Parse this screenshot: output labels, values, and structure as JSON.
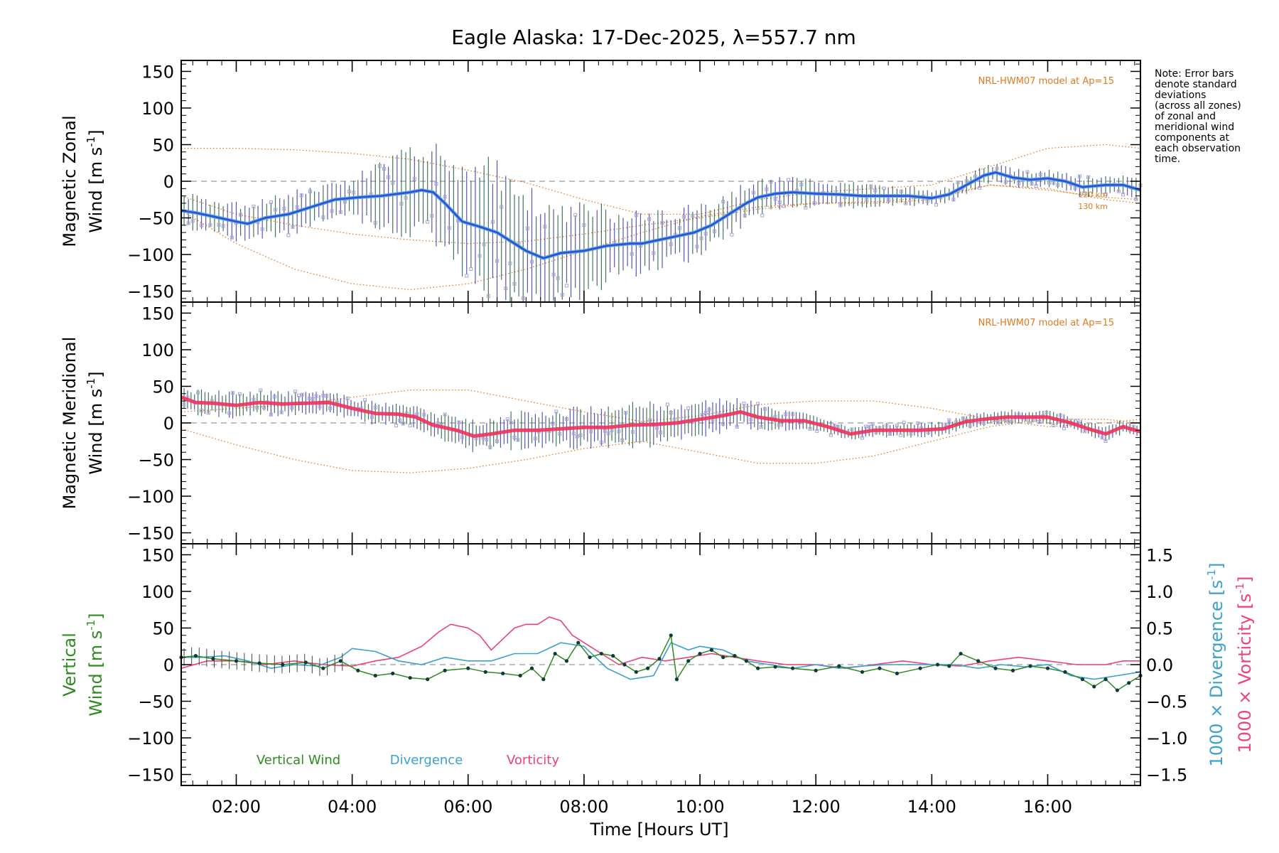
{
  "title": "Eagle Alaska: 17-Dec-2025, λ=557.7 nm",
  "note_lines": [
    "Note: Error bars",
    "denote standard",
    "deviations",
    "(across all zones)",
    "of zonal and",
    "meridional wind",
    "components at",
    "each observation",
    "time."
  ],
  "colors": {
    "zonal": "#2a4fd8",
    "zonal_light": "#58a6e0",
    "meridional": "#f0305a",
    "model": "#e07a20",
    "scatter": "#a9a0d8",
    "vertical": "#2e8b20",
    "divergence": "#3aa0d0",
    "vorticity": "#ef3f7f",
    "errorbar_a": "#1f5f3f",
    "errorbar_b": "#3a3aa0"
  },
  "chart_data": [
    {
      "type": "line",
      "panel": "zonal",
      "ylabel_line1": "Magnetic Zonal",
      "ylabel_line2": "Wind [m s",
      "ylabel_sup": "-1",
      "ylabel_close": "]",
      "ylim": [
        -165,
        165
      ],
      "yticks": [
        150,
        100,
        50,
        0,
        -50,
        -100,
        -150
      ],
      "xlim": [
        1.05,
        17.6
      ],
      "model_label": "NRL-HWM07 model at Ap=15",
      "model_alt_labels": [
        "120 km",
        "130 km"
      ],
      "series": [
        {
          "name": "Zonal wind",
          "x": [
            1.05,
            1.3,
            1.6,
            2.0,
            2.2,
            2.5,
            2.9,
            3.3,
            3.7,
            4.1,
            4.5,
            5.0,
            5.2,
            5.4,
            5.6,
            5.9,
            6.2,
            6.5,
            6.8,
            7.0,
            7.3,
            7.6,
            8.0,
            8.4,
            8.8,
            9.0,
            9.3,
            9.6,
            9.9,
            10.2,
            10.5,
            10.8,
            11.0,
            11.3,
            11.6,
            12.0,
            12.4,
            12.8,
            13.2,
            13.6,
            14.0,
            14.3,
            14.6,
            14.9,
            15.1,
            15.4,
            15.7,
            16.0,
            16.3,
            16.6,
            17.0,
            17.3,
            17.6
          ],
          "y": [
            -40,
            -43,
            -48,
            -55,
            -58,
            -50,
            -45,
            -35,
            -25,
            -22,
            -20,
            -15,
            -12,
            -15,
            -30,
            -55,
            -62,
            -70,
            -85,
            -95,
            -105,
            -98,
            -95,
            -88,
            -85,
            -85,
            -80,
            -75,
            -70,
            -60,
            -45,
            -30,
            -22,
            -17,
            -15,
            -17,
            -18,
            -20,
            -20,
            -20,
            -23,
            -18,
            -5,
            8,
            12,
            5,
            2,
            4,
            0,
            -8,
            -5,
            -5,
            -12
          ]
        },
        {
          "name": "Model 120 km",
          "x": [
            1.05,
            2,
            3,
            4,
            5,
            6,
            7,
            8,
            9,
            10,
            11,
            12,
            13,
            14,
            15,
            16,
            17,
            17.6
          ],
          "y": [
            45,
            45,
            43,
            38,
            30,
            15,
            -2,
            -25,
            -45,
            -45,
            -25,
            -15,
            -10,
            -5,
            20,
            45,
            50,
            45
          ]
        },
        {
          "name": "Model 130 km",
          "x": [
            1.05,
            2,
            3,
            4,
            5,
            6,
            7,
            8,
            9,
            10,
            11,
            12,
            13,
            14,
            15,
            16,
            17,
            17.6
          ],
          "y": [
            -40,
            -85,
            -120,
            -140,
            -148,
            -140,
            -120,
            -95,
            -70,
            -48,
            -35,
            -30,
            -30,
            -25,
            -5,
            -10,
            -25,
            -30
          ]
        },
        {
          "name": "Model mid",
          "x": [
            1.05,
            2,
            3,
            4,
            5,
            6,
            7,
            8,
            9,
            10,
            11,
            12,
            13,
            14,
            15,
            16,
            17,
            17.6
          ],
          "y": [
            -20,
            -45,
            -60,
            -72,
            -80,
            -85,
            -82,
            -72,
            -60,
            -50,
            -38,
            -30,
            -28,
            -22,
            -5,
            -12,
            -22,
            -25
          ]
        }
      ]
    },
    {
      "type": "line",
      "panel": "meridional",
      "ylabel_line1": "Magnetic Meridional",
      "ylabel_line2": "Wind [m s",
      "ylabel_sup": "-1",
      "ylabel_close": "]",
      "ylim": [
        -165,
        165
      ],
      "yticks": [
        150,
        100,
        50,
        0,
        -50,
        -100,
        -150
      ],
      "xlim": [
        1.05,
        17.6
      ],
      "model_label": "NRL-HWM07 model at Ap=15",
      "series": [
        {
          "name": "Meridional wind",
          "x": [
            1.05,
            1.3,
            1.6,
            2.0,
            2.4,
            2.8,
            3.2,
            3.6,
            4.0,
            4.4,
            4.8,
            5.1,
            5.4,
            5.8,
            6.1,
            6.4,
            6.8,
            7.2,
            7.6,
            8.0,
            8.4,
            8.8,
            9.2,
            9.6,
            10.0,
            10.4,
            10.7,
            11.0,
            11.4,
            11.8,
            12.2,
            12.6,
            13.0,
            13.4,
            13.8,
            14.2,
            14.6,
            15.0,
            15.3,
            15.6,
            16.0,
            16.4,
            16.7,
            17.0,
            17.3,
            17.6
          ],
          "y": [
            35,
            28,
            27,
            24,
            28,
            26,
            27,
            28,
            20,
            13,
            12,
            8,
            -3,
            -10,
            -18,
            -15,
            -10,
            -10,
            -8,
            -6,
            -6,
            -3,
            -2,
            0,
            5,
            10,
            15,
            8,
            3,
            3,
            -5,
            -15,
            -10,
            -10,
            -10,
            -8,
            2,
            6,
            8,
            8,
            8,
            0,
            -8,
            -15,
            -5,
            -12
          ]
        },
        {
          "name": "Model A",
          "x": [
            1.05,
            2,
            3,
            4,
            5,
            6,
            7,
            8,
            9,
            10,
            11,
            12,
            13,
            14,
            15,
            16,
            17,
            17.6
          ],
          "y": [
            -8,
            -30,
            -50,
            -65,
            -68,
            -62,
            -50,
            -35,
            -25,
            -40,
            -55,
            -55,
            -45,
            -25,
            -5,
            5,
            5,
            0
          ]
        },
        {
          "name": "Model B",
          "x": [
            1.05,
            2,
            3,
            4,
            5,
            6,
            7,
            8,
            9,
            10,
            11,
            12,
            13,
            14,
            15,
            16,
            17,
            17.6
          ],
          "y": [
            15,
            20,
            25,
            35,
            45,
            45,
            30,
            15,
            2,
            10,
            25,
            30,
            30,
            20,
            5,
            -5,
            0,
            5
          ]
        }
      ]
    },
    {
      "type": "line",
      "panel": "vertical",
      "ylabel_line1": "Vertical",
      "ylabel_line2": "Wind [m s",
      "ylabel_sup": "-1",
      "ylabel_close": "]",
      "ylim": [
        -165,
        165
      ],
      "yticks": [
        150,
        100,
        50,
        0,
        -50,
        -100,
        -150
      ],
      "y2lim": [
        -1.65,
        1.65
      ],
      "y2ticks": [
        1.5,
        1.0,
        0.5,
        0.0,
        -0.5,
        -1.0,
        -1.5
      ],
      "y2ticklabels": [
        "1.5",
        "1.0",
        "0.5",
        "0.0",
        "−0.5",
        "−1.0",
        "−1.5"
      ],
      "y2label_div": "1000 × Divergence [s",
      "y2label_vort": "1000 × Vorticity [s",
      "y2label_sup": "-1",
      "y2label_close": "]",
      "xlim": [
        1.05,
        17.6
      ],
      "xticks": [
        2,
        4,
        6,
        8,
        10,
        12,
        14,
        16
      ],
      "xticklabels": [
        "02:00",
        "04:00",
        "06:00",
        "08:00",
        "10:00",
        "12:00",
        "14:00",
        "16:00"
      ],
      "xlabel": "Time [Hours UT]",
      "legend": [
        "Vertical Wind",
        "Divergence",
        "Vorticity"
      ],
      "series": [
        {
          "name": "Vertical Wind",
          "x": [
            1.05,
            1.3,
            1.6,
            2.0,
            2.4,
            2.8,
            3.2,
            3.5,
            3.8,
            4.1,
            4.4,
            4.7,
            5.0,
            5.3,
            5.6,
            6.0,
            6.3,
            6.6,
            6.9,
            7.1,
            7.3,
            7.5,
            7.7,
            7.9,
            8.1,
            8.3,
            8.5,
            8.7,
            8.9,
            9.1,
            9.3,
            9.5,
            9.6,
            9.8,
            10.0,
            10.2,
            10.4,
            10.6,
            10.8,
            11.0,
            11.3,
            11.6,
            12.0,
            12.4,
            12.8,
            13.1,
            13.4,
            13.8,
            14.1,
            14.3,
            14.5,
            14.8,
            15.1,
            15.4,
            15.7,
            16.0,
            16.3,
            16.6,
            16.8,
            17.0,
            17.2,
            17.4,
            17.6
          ],
          "y": [
            10,
            12,
            8,
            5,
            2,
            0,
            3,
            -5,
            5,
            -8,
            -15,
            -12,
            -18,
            -20,
            -8,
            -5,
            -10,
            -12,
            -15,
            -5,
            -20,
            15,
            5,
            30,
            10,
            15,
            12,
            0,
            -10,
            -5,
            8,
            40,
            -20,
            5,
            15,
            20,
            10,
            12,
            5,
            -5,
            -3,
            -5,
            -8,
            -2,
            -10,
            -5,
            -12,
            -5,
            0,
            -2,
            15,
            5,
            -5,
            -8,
            -2,
            -5,
            -10,
            -20,
            -30,
            -20,
            -35,
            -25,
            -15
          ]
        },
        {
          "name": "Divergence",
          "x": [
            1.05,
            1.4,
            1.8,
            2.2,
            2.6,
            3.0,
            3.4,
            3.8,
            4.0,
            4.4,
            4.8,
            5.2,
            5.6,
            6.0,
            6.4,
            6.8,
            7.2,
            7.6,
            8.0,
            8.4,
            8.8,
            9.2,
            9.5,
            9.8,
            10.0,
            10.4,
            10.8,
            11.2,
            11.6,
            12.0,
            12.4,
            12.8,
            13.2,
            13.6,
            14.0,
            14.4,
            14.8,
            15.2,
            15.6,
            16.0,
            16.4,
            16.8,
            17.2,
            17.6
          ],
          "y": [
            0.1,
            0.1,
            0.12,
            0.05,
            -0.05,
            0.0,
            -0.02,
            0.1,
            0.22,
            0.18,
            0.05,
            0.0,
            0.1,
            0.05,
            0.05,
            0.15,
            0.15,
            0.3,
            0.25,
            -0.05,
            -0.2,
            -0.15,
            0.3,
            0.2,
            0.25,
            0.2,
            0.05,
            0.0,
            -0.05,
            0.0,
            -0.05,
            -0.02,
            0.0,
            0.0,
            0.0,
            0.0,
            -0.05,
            0.0,
            -0.03,
            0.0,
            -0.15,
            -0.2,
            -0.15,
            -0.1
          ]
        },
        {
          "name": "Vorticity",
          "x": [
            1.05,
            1.5,
            2.0,
            2.5,
            3.0,
            3.5,
            4.0,
            4.4,
            4.8,
            5.2,
            5.5,
            5.7,
            6.0,
            6.2,
            6.4,
            6.6,
            6.8,
            7.0,
            7.2,
            7.4,
            7.6,
            7.8,
            8.0,
            8.3,
            8.6,
            9.0,
            9.4,
            9.8,
            10.2,
            10.6,
            11.0,
            11.5,
            12.0,
            12.5,
            13.0,
            13.5,
            14.0,
            14.5,
            15.0,
            15.5,
            16.0,
            16.5,
            17.0,
            17.3,
            17.6
          ],
          "y": [
            -0.05,
            0.05,
            0.05,
            0.0,
            0.05,
            0.0,
            -0.02,
            0.05,
            0.1,
            0.25,
            0.45,
            0.55,
            0.5,
            0.4,
            0.2,
            0.35,
            0.5,
            0.55,
            0.55,
            0.65,
            0.6,
            0.4,
            0.3,
            0.15,
            0.0,
            0.1,
            0.05,
            0.1,
            0.15,
            0.1,
            0.05,
            0.0,
            0.0,
            -0.05,
            0.0,
            0.05,
            0.0,
            -0.02,
            0.05,
            0.1,
            0.05,
            0.0,
            0.0,
            0.05,
            0.05
          ]
        }
      ]
    }
  ]
}
